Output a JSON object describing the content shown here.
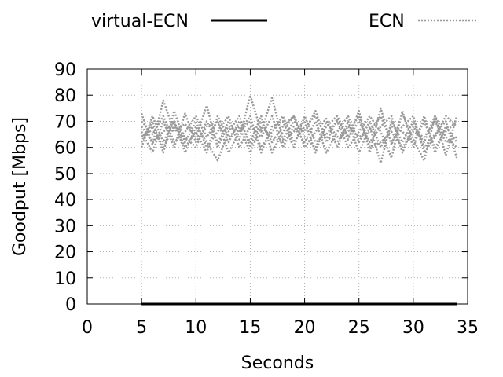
{
  "chart_data": {
    "type": "line",
    "xlabel": "Seconds",
    "ylabel": "Goodput [Mbps]",
    "xlim": [
      0,
      35
    ],
    "ylim": [
      0,
      90
    ],
    "xticks": [
      0,
      5,
      10,
      15,
      20,
      25,
      30,
      35
    ],
    "yticks": [
      0,
      10,
      20,
      30,
      40,
      50,
      60,
      70,
      80,
      90
    ],
    "grid": true,
    "legend_position": "top",
    "x": [
      5,
      6,
      7,
      8,
      9,
      10,
      11,
      12,
      13,
      14,
      15,
      16,
      17,
      18,
      19,
      20,
      21,
      22,
      23,
      24,
      25,
      26,
      27,
      28,
      29,
      30,
      31,
      32,
      33,
      34
    ],
    "series": [
      {
        "name": "virtual-ECN",
        "style": "solid",
        "color": "#000000",
        "values": [
          0,
          0,
          0,
          0,
          0,
          0,
          0,
          0,
          0,
          0,
          0,
          0,
          0,
          0,
          0,
          0,
          0,
          0,
          0,
          0,
          0,
          0,
          0,
          0,
          0,
          0,
          0,
          0,
          0,
          0
        ]
      },
      {
        "name": "ECN",
        "style": "dotted",
        "color": "#999999",
        "values": [
          73,
          61,
          78,
          66,
          69,
          64,
          76,
          60,
          70,
          63,
          80,
          66,
          79,
          63,
          70,
          66,
          74,
          62,
          71,
          63,
          74,
          58,
          75,
          61,
          73,
          63,
          55,
          72,
          57,
          72
        ]
      },
      {
        "name": "",
        "style": "dotted",
        "color": "#999999",
        "values": [
          60,
          72,
          62,
          70,
          58,
          68,
          62,
          55,
          66,
          72,
          60,
          70,
          62,
          68,
          72,
          60,
          66,
          71,
          60,
          70,
          58,
          68,
          54,
          70,
          62,
          70,
          60,
          65,
          70,
          56
        ]
      },
      {
        "name": "",
        "style": "dotted",
        "color": "#999999",
        "values": [
          66,
          58,
          70,
          60,
          73,
          62,
          68,
          70,
          58,
          66,
          72,
          58,
          68,
          70,
          60,
          72,
          62,
          65,
          70,
          60,
          66,
          72,
          66,
          56,
          74,
          60,
          72,
          58,
          68,
          62
        ]
      },
      {
        "name": "",
        "style": "dotted",
        "color": "#999999",
        "values": [
          62,
          70,
          58,
          74,
          62,
          70,
          60,
          66,
          72,
          60,
          68,
          64,
          72,
          60,
          68,
          62,
          70,
          58,
          66,
          72,
          62,
          70,
          60,
          68,
          66,
          62,
          70,
          60,
          66,
          70
        ]
      },
      {
        "name": "",
        "style": "dotted",
        "color": "#999999",
        "values": [
          70,
          65,
          72,
          62,
          66,
          72,
          64,
          70,
          62,
          70,
          62,
          72,
          58,
          66,
          72,
          64,
          60,
          68,
          72,
          64,
          70,
          62,
          68,
          72,
          58,
          68,
          62,
          72,
          64,
          60
        ]
      },
      {
        "name": "",
        "style": "dotted",
        "color": "#999999",
        "values": [
          64,
          68,
          60,
          68,
          64,
          60,
          70,
          62,
          68,
          66,
          70,
          60,
          66,
          72,
          62,
          68,
          72,
          64,
          62,
          68,
          64,
          66,
          72,
          62,
          68,
          72,
          58,
          64,
          72,
          68
        ]
      },
      {
        "name": "",
        "style": "dotted",
        "color": "#999999",
        "values": [
          68,
          62,
          66,
          70,
          60,
          66,
          58,
          72,
          64,
          68,
          58,
          68,
          64,
          62,
          66,
          70,
          58,
          70,
          64,
          66,
          72,
          60,
          62,
          66,
          60,
          66,
          64,
          70,
          62,
          64
        ]
      }
    ]
  }
}
